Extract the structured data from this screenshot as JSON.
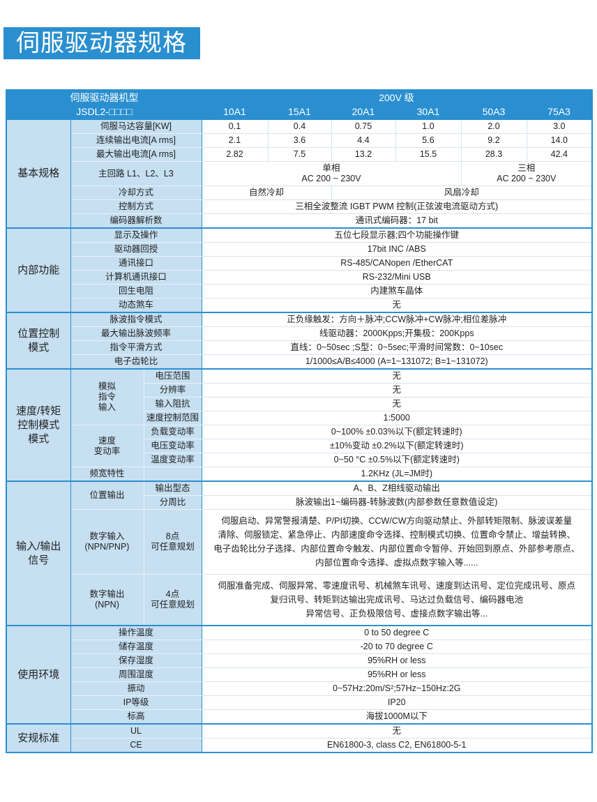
{
  "title": "伺服驱动器规格",
  "header": {
    "model_label": "伺服驱动器机型",
    "model_code": "JSDL2-□□□□",
    "voltage_class": "200V 级",
    "models": [
      "10A1",
      "15A1",
      "20A1",
      "30A1",
      "50A3",
      "75A3"
    ]
  },
  "colors": {
    "accent": "#2a8fcf",
    "label_bg": "#c6dff1"
  },
  "sections": [
    {
      "group": "基本规格",
      "rows": [
        {
          "labels": [
            {
              "text": "伺服马达容量[KW]",
              "colspan": 2
            }
          ],
          "cells": [
            {
              "text": "0.1"
            },
            {
              "text": "0.4"
            },
            {
              "text": "0.75"
            },
            {
              "text": "1.0"
            },
            {
              "text": "2.0"
            },
            {
              "text": "3.0"
            }
          ]
        },
        {
          "labels": [
            {
              "text": "连续输出电流[A rms]",
              "colspan": 2
            }
          ],
          "cells": [
            {
              "text": "2.1"
            },
            {
              "text": "3.6"
            },
            {
              "text": "4.4"
            },
            {
              "text": "5.6"
            },
            {
              "text": "9.2"
            },
            {
              "text": "14.0"
            }
          ]
        },
        {
          "labels": [
            {
              "text": "最大输出电流[A rms]",
              "colspan": 2
            }
          ],
          "cells": [
            {
              "text": "2.82"
            },
            {
              "text": "7.5"
            },
            {
              "text": "13.2"
            },
            {
              "text": "15.5"
            },
            {
              "text": "28.3"
            },
            {
              "text": "42.4"
            }
          ]
        },
        {
          "labels": [
            {
              "text": "主回路 L1、L2、L3",
              "colspan": 2
            }
          ],
          "cells": [
            {
              "text": "单相\nAC 200 ~ 230V",
              "span": 4
            },
            {
              "text": "三相\nAC 200 ~ 230V",
              "span": 2
            }
          ]
        },
        {
          "labels": [
            {
              "text": "冷却方式",
              "colspan": 2
            }
          ],
          "cells": [
            {
              "text": "自然冷却",
              "span": 2
            },
            {
              "text": "风扇冷却",
              "span": 4
            }
          ]
        },
        {
          "labels": [
            {
              "text": "控制方式",
              "colspan": 2
            }
          ],
          "cells": [
            {
              "text": "三相全波整流 IGBT PWM 控制(正弦波电流驱动方式)",
              "span": 6
            }
          ]
        },
        {
          "labels": [
            {
              "text": "编码器解析数",
              "colspan": 2
            }
          ],
          "cells": [
            {
              "text": "通讯式编码器：17 bit",
              "span": 6
            }
          ]
        }
      ]
    },
    {
      "group": "内部功能",
      "rows": [
        {
          "labels": [
            {
              "text": "显示及操作",
              "colspan": 2
            }
          ],
          "cells": [
            {
              "text": "五位七段显示器;四个功能操作键",
              "span": 6
            }
          ]
        },
        {
          "labels": [
            {
              "text": "驱动器回授",
              "colspan": 2
            }
          ],
          "cells": [
            {
              "text": "17bit INC /ABS",
              "span": 6
            }
          ]
        },
        {
          "labels": [
            {
              "text": "通讯接口",
              "colspan": 2
            }
          ],
          "cells": [
            {
              "text": "RS-485/CANopen /EtherCAT",
              "span": 6
            }
          ]
        },
        {
          "labels": [
            {
              "text": "计算机通讯接口",
              "colspan": 2
            }
          ],
          "cells": [
            {
              "text": "RS-232/Mini USB",
              "span": 6
            }
          ]
        },
        {
          "labels": [
            {
              "text": "回生电阻",
              "colspan": 2
            }
          ],
          "cells": [
            {
              "text": "内建煞车晶体",
              "span": 6
            }
          ]
        },
        {
          "labels": [
            {
              "text": "动态煞车",
              "colspan": 2
            }
          ],
          "cells": [
            {
              "text": "无",
              "span": 6
            }
          ]
        }
      ]
    },
    {
      "group": "位置控制\n模式",
      "rows": [
        {
          "labels": [
            {
              "text": "脉波指令模式",
              "colspan": 2
            }
          ],
          "cells": [
            {
              "text": "正负缘触发：方向＋脉冲;CCW脉冲+CW脉冲;相位差脉冲",
              "span": 6
            }
          ]
        },
        {
          "labels": [
            {
              "text": "最大输出脉波频率",
              "colspan": 2
            }
          ],
          "cells": [
            {
              "text": "线驱动器：2000Kpps;开集极：200Kpps",
              "span": 6
            }
          ]
        },
        {
          "labels": [
            {
              "text": "指令平滑方式",
              "colspan": 2
            }
          ],
          "cells": [
            {
              "text": "直线：0~50sec ;S型：0~5sec;平滑时间常数：0~10sec",
              "span": 6
            }
          ]
        },
        {
          "labels": [
            {
              "text": "电子齿轮比",
              "colspan": 2
            }
          ],
          "cells": [
            {
              "text": "1/1000≤A/B≤4000 (A=1~131072; B=1~131072)",
              "span": 6
            }
          ]
        }
      ]
    },
    {
      "group": "速度/转矩\n控制模式\n模式",
      "rows": [
        {
          "labels": [
            {
              "text": "模拟\n指令\n输入",
              "rowspan": 4
            },
            {
              "text": "电压范围"
            }
          ],
          "cells": [
            {
              "text": "无",
              "span": 6
            }
          ]
        },
        {
          "labels": [
            {
              "text": "分辨率"
            }
          ],
          "cells": [
            {
              "text": "无",
              "span": 6
            }
          ]
        },
        {
          "labels": [
            {
              "text": "输入阻抗"
            }
          ],
          "cells": [
            {
              "text": "无",
              "span": 6
            }
          ]
        },
        {
          "labels": [
            {
              "text": "速度控制范围"
            }
          ],
          "cells": [
            {
              "text": "1:5000",
              "span": 6
            }
          ]
        },
        {
          "labels": [
            {
              "text": "速度\n变动率",
              "rowspan": 3
            },
            {
              "text": "负载变动率"
            }
          ],
          "cells": [
            {
              "text": "0~100% ±0.03%以下(额定转速时)",
              "span": 6
            }
          ]
        },
        {
          "labels": [
            {
              "text": "电压变动率"
            }
          ],
          "cells": [
            {
              "text": "±10%变动 ±0.2%以下(额定转速时)",
              "span": 6
            }
          ]
        },
        {
          "labels": [
            {
              "text": "温度变动率"
            }
          ],
          "cells": [
            {
              "text": "0~50 °C  ±0.5%以下(额定转速时)",
              "span": 6
            }
          ]
        },
        {
          "labels": [
            {
              "text": "频宽特性"
            },
            {
              "text": ""
            }
          ],
          "cells": [
            {
              "text": "1.2KHz (JL=JM时)",
              "span": 6
            }
          ]
        }
      ]
    },
    {
      "group": "输入/输出\n信号",
      "rows": [
        {
          "labels": [
            {
              "text": "位置输出",
              "rowspan": 2
            },
            {
              "text": "输出型态"
            }
          ],
          "cells": [
            {
              "text": "A、B、Z相线驱动输出",
              "span": 6
            }
          ]
        },
        {
          "labels": [
            {
              "text": "分周比"
            }
          ],
          "cells": [
            {
              "text": "脉波输出1~编码器-转脉波数(内部参数任意数值设定)",
              "span": 6
            }
          ]
        },
        {
          "multi": true,
          "labels": [
            {
              "text": "数字输入\n(NPN/PNP)"
            },
            {
              "text": "8点\n可任意规划"
            }
          ],
          "cells": [
            {
              "text": "伺服启动、异常警报清楚、P/PI切换、CCW/CW方向驱动禁止、外部转矩限制、脉波误差量\n清除、伺服锁定、紧急停止、内部速度命令选择、控制模式切换、位置命令禁止、增益转换、\n电子齿轮比分子选择、内部位置命令触发、内部位置命令暂停、开始回到原点、外部参考原点、\n内部位置命令选择、虚拟点数字输入等......",
              "span": 6
            }
          ]
        },
        {
          "multi": true,
          "labels": [
            {
              "text": "数字输出\n(NPN)"
            },
            {
              "text": "4点\n可任意规划"
            }
          ],
          "cells": [
            {
              "text": "伺服准备完成、伺服异常、零速度讯号、机械煞车讯号、速度到达讯号、定位完成讯号、原点\n复归讯号、转矩到达输出完成讯号、马达过负载信号、编码器电池\n异常信号、正负极限信号、虚接点数字输出等...",
              "span": 6
            }
          ]
        }
      ]
    },
    {
      "group": "使用环境",
      "rows": [
        {
          "labels": [
            {
              "text": "操作温度",
              "colspan": 2
            }
          ],
          "cells": [
            {
              "text": "0 to 50 degree C",
              "span": 6
            }
          ]
        },
        {
          "labels": [
            {
              "text": "储存温度",
              "colspan": 2
            }
          ],
          "cells": [
            {
              "text": "-20 to 70 degree C",
              "span": 6
            }
          ]
        },
        {
          "labels": [
            {
              "text": "保存湿度",
              "colspan": 2
            }
          ],
          "cells": [
            {
              "text": "95%RH or less",
              "span": 6
            }
          ]
        },
        {
          "labels": [
            {
              "text": "周围湿度",
              "colspan": 2
            }
          ],
          "cells": [
            {
              "text": "95%RH or less",
              "span": 6
            }
          ]
        },
        {
          "labels": [
            {
              "text": "振动",
              "colspan": 2
            }
          ],
          "cells": [
            {
              "text": "0~57Hz:20m/S²;57Hz~150Hz:2G",
              "span": 6
            }
          ]
        },
        {
          "labels": [
            {
              "text": "IP等级",
              "colspan": 2
            }
          ],
          "cells": [
            {
              "text": "IP20",
              "span": 6
            }
          ]
        },
        {
          "labels": [
            {
              "text": "标高",
              "colspan": 2
            }
          ],
          "cells": [
            {
              "text": "海拔1000M以下",
              "span": 6
            }
          ]
        }
      ]
    },
    {
      "group": "安规标准",
      "rows": [
        {
          "labels": [
            {
              "text": "UL",
              "colspan": 2
            }
          ],
          "cells": [
            {
              "text": "无",
              "span": 6
            }
          ]
        },
        {
          "labels": [
            {
              "text": "CE",
              "colspan": 2
            }
          ],
          "cells": [
            {
              "text": "EN61800-3, class C2, EN61800-5-1",
              "span": 6
            }
          ]
        }
      ]
    }
  ]
}
